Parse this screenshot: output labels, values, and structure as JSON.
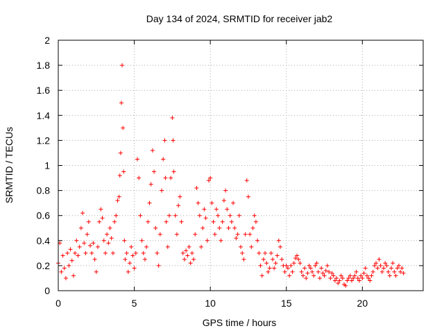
{
  "chart_data": {
    "type": "scatter",
    "title": "Day 134 of 2024, SRMTID for receiver jab2",
    "xlabel": "GPS time / hours",
    "ylabel": "SRMTID / TECUs",
    "xlim": [
      0,
      24
    ],
    "ylim": [
      0,
      2
    ],
    "xticks": [
      0,
      5,
      10,
      15,
      20
    ],
    "xtick_labels": [
      "0",
      "5",
      "10",
      "15",
      "20"
    ],
    "yticks": [
      0,
      0.2,
      0.4,
      0.6,
      0.8,
      1,
      1.2,
      1.4,
      1.6,
      1.8,
      2
    ],
    "ytick_labels": [
      "0",
      "0.2",
      "0.4",
      "0.6",
      "0.8",
      "1",
      "1.2",
      "1.4",
      "1.6",
      "1.8",
      "2"
    ],
    "grid": true,
    "marker": "+",
    "series": [
      {
        "name": "SRMTID",
        "color": "#ff0000",
        "points": [
          [
            0.0,
            0.22
          ],
          [
            0.1,
            0.38
          ],
          [
            0.2,
            0.15
          ],
          [
            0.3,
            0.28
          ],
          [
            0.4,
            0.18
          ],
          [
            0.5,
            0.1
          ],
          [
            0.6,
            0.3
          ],
          [
            0.7,
            0.2
          ],
          [
            0.8,
            0.33
          ],
          [
            0.9,
            0.24
          ],
          [
            1.0,
            0.12
          ],
          [
            1.1,
            0.3
          ],
          [
            1.2,
            0.4
          ],
          [
            1.3,
            0.28
          ],
          [
            1.4,
            0.35
          ],
          [
            1.5,
            0.5
          ],
          [
            1.6,
            0.62
          ],
          [
            1.7,
            0.38
          ],
          [
            1.8,
            0.3
          ],
          [
            1.9,
            0.45
          ],
          [
            2.0,
            0.55
          ],
          [
            2.1,
            0.36
          ],
          [
            2.2,
            0.3
          ],
          [
            2.3,
            0.38
          ],
          [
            2.4,
            0.25
          ],
          [
            2.5,
            0.15
          ],
          [
            2.6,
            0.35
          ],
          [
            2.7,
            0.55
          ],
          [
            2.8,
            0.65
          ],
          [
            2.9,
            0.58
          ],
          [
            3.0,
            0.4
          ],
          [
            3.1,
            0.3
          ],
          [
            3.2,
            0.45
          ],
          [
            3.3,
            0.38
          ],
          [
            3.4,
            0.5
          ],
          [
            3.5,
            0.42
          ],
          [
            3.6,
            0.3
          ],
          [
            3.7,
            0.55
          ],
          [
            3.8,
            0.6
          ],
          [
            3.9,
            0.72
          ],
          [
            4.0,
            0.75
          ],
          [
            4.05,
            0.92
          ],
          [
            4.1,
            1.1
          ],
          [
            4.15,
            1.5
          ],
          [
            4.2,
            1.8
          ],
          [
            4.25,
            1.3
          ],
          [
            4.3,
            0.95
          ],
          [
            4.35,
            0.4
          ],
          [
            4.4,
            0.25
          ],
          [
            4.5,
            0.3
          ],
          [
            4.6,
            0.15
          ],
          [
            4.7,
            0.22
          ],
          [
            4.8,
            0.35
          ],
          [
            4.9,
            0.28
          ],
          [
            5.0,
            0.18
          ],
          [
            5.1,
            0.3
          ],
          [
            5.2,
            1.05
          ],
          [
            5.3,
            0.9
          ],
          [
            5.4,
            0.6
          ],
          [
            5.5,
            0.4
          ],
          [
            5.6,
            0.3
          ],
          [
            5.7,
            0.25
          ],
          [
            5.8,
            0.35
          ],
          [
            5.9,
            0.55
          ],
          [
            6.0,
            0.7
          ],
          [
            6.1,
            0.85
          ],
          [
            6.2,
            1.12
          ],
          [
            6.3,
            0.95
          ],
          [
            6.4,
            0.5
          ],
          [
            6.5,
            0.3
          ],
          [
            6.6,
            0.2
          ],
          [
            6.7,
            0.45
          ],
          [
            6.8,
            0.8
          ],
          [
            6.9,
            1.05
          ],
          [
            7.0,
            1.2
          ],
          [
            7.05,
            0.9
          ],
          [
            7.1,
            0.55
          ],
          [
            7.2,
            0.35
          ],
          [
            7.3,
            0.6
          ],
          [
            7.4,
            0.9
          ],
          [
            7.5,
            1.38
          ],
          [
            7.55,
            1.2
          ],
          [
            7.6,
            0.95
          ],
          [
            7.7,
            0.6
          ],
          [
            7.8,
            0.45
          ],
          [
            7.9,
            0.68
          ],
          [
            8.0,
            0.75
          ],
          [
            8.1,
            0.55
          ],
          [
            8.2,
            0.3
          ],
          [
            8.3,
            0.25
          ],
          [
            8.4,
            0.32
          ],
          [
            8.5,
            0.28
          ],
          [
            8.6,
            0.35
          ],
          [
            8.7,
            0.22
          ],
          [
            8.8,
            0.3
          ],
          [
            8.9,
            0.25
          ],
          [
            9.0,
            0.45
          ],
          [
            9.1,
            0.82
          ],
          [
            9.2,
            0.7
          ],
          [
            9.3,
            0.6
          ],
          [
            9.4,
            0.35
          ],
          [
            9.5,
            0.5
          ],
          [
            9.6,
            0.65
          ],
          [
            9.7,
            0.58
          ],
          [
            9.8,
            0.4
          ],
          [
            9.9,
            0.88
          ],
          [
            10.0,
            0.9
          ],
          [
            10.1,
            0.7
          ],
          [
            10.2,
            0.55
          ],
          [
            10.3,
            0.45
          ],
          [
            10.4,
            0.65
          ],
          [
            10.5,
            0.6
          ],
          [
            10.6,
            0.5
          ],
          [
            10.7,
            0.4
          ],
          [
            10.8,
            0.55
          ],
          [
            10.9,
            0.72
          ],
          [
            11.0,
            0.8
          ],
          [
            11.1,
            0.65
          ],
          [
            11.2,
            0.5
          ],
          [
            11.3,
            0.6
          ],
          [
            11.4,
            0.55
          ],
          [
            11.5,
            0.7
          ],
          [
            11.6,
            0.5
          ],
          [
            11.7,
            0.42
          ],
          [
            11.8,
            0.45
          ],
          [
            11.9,
            0.6
          ],
          [
            12.0,
            0.35
          ],
          [
            12.1,
            0.3
          ],
          [
            12.2,
            0.25
          ],
          [
            12.3,
            0.45
          ],
          [
            12.4,
            0.88
          ],
          [
            12.5,
            0.75
          ],
          [
            12.6,
            0.45
          ],
          [
            12.7,
            0.35
          ],
          [
            12.8,
            0.5
          ],
          [
            12.9,
            0.6
          ],
          [
            13.0,
            0.55
          ],
          [
            13.1,
            0.4
          ],
          [
            13.2,
            0.3
          ],
          [
            13.3,
            0.2
          ],
          [
            13.4,
            0.12
          ],
          [
            13.5,
            0.25
          ],
          [
            13.6,
            0.3
          ],
          [
            13.7,
            0.22
          ],
          [
            13.8,
            0.15
          ],
          [
            13.9,
            0.18
          ],
          [
            14.0,
            0.3
          ],
          [
            14.1,
            0.25
          ],
          [
            14.2,
            0.18
          ],
          [
            14.3,
            0.22
          ],
          [
            14.4,
            0.28
          ],
          [
            14.5,
            0.4
          ],
          [
            14.6,
            0.35
          ],
          [
            14.7,
            0.25
          ],
          [
            14.8,
            0.2
          ],
          [
            14.9,
            0.15
          ],
          [
            15.0,
            0.2
          ],
          [
            15.1,
            0.18
          ],
          [
            15.2,
            0.12
          ],
          [
            15.3,
            0.2
          ],
          [
            15.4,
            0.15
          ],
          [
            15.5,
            0.22
          ],
          [
            15.6,
            0.26
          ],
          [
            15.7,
            0.28
          ],
          [
            15.8,
            0.25
          ],
          [
            15.9,
            0.22
          ],
          [
            16.0,
            0.15
          ],
          [
            16.1,
            0.12
          ],
          [
            16.2,
            0.18
          ],
          [
            16.3,
            0.1
          ],
          [
            16.4,
            0.14
          ],
          [
            16.5,
            0.2
          ],
          [
            16.6,
            0.18
          ],
          [
            16.7,
            0.15
          ],
          [
            16.8,
            0.12
          ],
          [
            16.9,
            0.2
          ],
          [
            17.0,
            0.22
          ],
          [
            17.1,
            0.15
          ],
          [
            17.2,
            0.1
          ],
          [
            17.3,
            0.18
          ],
          [
            17.4,
            0.14
          ],
          [
            17.5,
            0.12
          ],
          [
            17.6,
            0.16
          ],
          [
            17.7,
            0.2
          ],
          [
            17.8,
            0.15
          ],
          [
            17.9,
            0.1
          ],
          [
            18.0,
            0.14
          ],
          [
            18.1,
            0.12
          ],
          [
            18.2,
            0.08
          ],
          [
            18.3,
            0.1
          ],
          [
            18.4,
            0.06
          ],
          [
            18.5,
            0.08
          ],
          [
            18.6,
            0.12
          ],
          [
            18.7,
            0.1
          ],
          [
            18.8,
            0.05
          ],
          [
            18.9,
            0.04
          ],
          [
            19.0,
            0.08
          ],
          [
            19.1,
            0.1
          ],
          [
            19.2,
            0.12
          ],
          [
            19.3,
            0.08
          ],
          [
            19.4,
            0.1
          ],
          [
            19.5,
            0.12
          ],
          [
            19.6,
            0.15
          ],
          [
            19.7,
            0.1
          ],
          [
            19.8,
            0.08
          ],
          [
            19.9,
            0.12
          ],
          [
            20.0,
            0.1
          ],
          [
            20.1,
            0.14
          ],
          [
            20.2,
            0.18
          ],
          [
            20.3,
            0.12
          ],
          [
            20.4,
            0.1
          ],
          [
            20.5,
            0.08
          ],
          [
            20.6,
            0.12
          ],
          [
            20.7,
            0.15
          ],
          [
            20.8,
            0.2
          ],
          [
            20.9,
            0.22
          ],
          [
            21.0,
            0.18
          ],
          [
            21.1,
            0.25
          ],
          [
            21.2,
            0.2
          ],
          [
            21.3,
            0.15
          ],
          [
            21.4,
            0.18
          ],
          [
            21.5,
            0.22
          ],
          [
            21.6,
            0.2
          ],
          [
            21.7,
            0.15
          ],
          [
            21.8,
            0.12
          ],
          [
            21.9,
            0.18
          ],
          [
            22.0,
            0.22
          ],
          [
            22.1,
            0.15
          ],
          [
            22.2,
            0.12
          ],
          [
            22.3,
            0.18
          ],
          [
            22.4,
            0.2
          ],
          [
            22.5,
            0.15
          ],
          [
            22.6,
            0.18
          ],
          [
            22.7,
            0.14
          ]
        ]
      }
    ]
  }
}
